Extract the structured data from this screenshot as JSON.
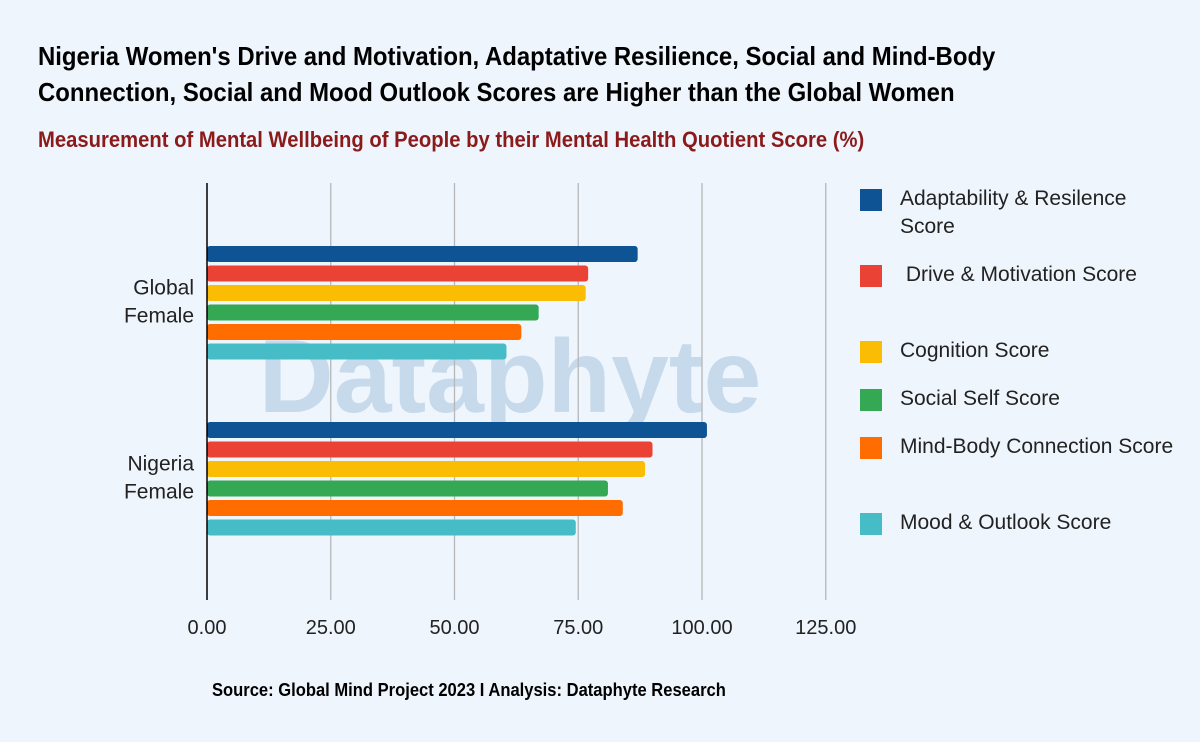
{
  "title": "Nigeria Women's Drive and Motivation, Adaptative Resilience, Social and Mind-Body Connection, Social and Mood Outlook Scores are Higher than the Global Women",
  "subtitle": "Measurement of Mental Wellbeing of People by their Mental Health Quotient Score (%)",
  "source": "Source: Global Mind Project 2023 I Analysis: Dataphyte Research",
  "watermark": "Dataphyte",
  "chart_data": {
    "type": "bar",
    "orientation": "horizontal",
    "categories": [
      "Global\nFemale",
      "Nigeria\nFemale"
    ],
    "series": [
      {
        "name": "Adaptability & Resilence Score",
        "color": "#0e5394",
        "values": [
          87,
          101
        ]
      },
      {
        "name": " Drive & Motivation Score",
        "color": "#ea4335",
        "values": [
          77,
          90
        ]
      },
      {
        "name": "Cognition Score",
        "color": "#fbbc04",
        "values": [
          76.5,
          88.5
        ]
      },
      {
        "name": "Social Self Score",
        "color": "#34a853",
        "values": [
          67,
          81
        ]
      },
      {
        "name": "Mind-Body Connection Score",
        "color": "#ff6d01",
        "values": [
          63.5,
          84
        ]
      },
      {
        "name": "Mood & Outlook Score",
        "color": "#46bdc6",
        "values": [
          60.5,
          74.5
        ]
      }
    ],
    "x_ticks": [
      "0.00",
      "25.00",
      "50.00",
      "75.00",
      "100.00",
      "125.00"
    ],
    "xlim": [
      0,
      125
    ],
    "grid": true,
    "legend_position": "right"
  }
}
